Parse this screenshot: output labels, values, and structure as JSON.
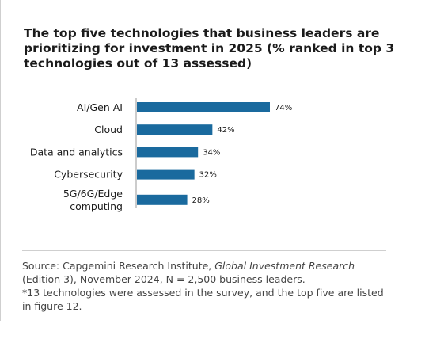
{
  "title": "The top five technologies that business leaders are prioritizing for investment in 2025 (% ranked in top 3 technologies out of 13 assessed)",
  "chart_data": {
    "type": "bar",
    "orientation": "horizontal",
    "categories": [
      [
        "AI/Gen AI"
      ],
      [
        "Cloud"
      ],
      [
        "Data and analytics"
      ],
      [
        "Cybersecurity"
      ],
      [
        "5G/6G/Edge",
        "computing"
      ]
    ],
    "values": [
      74,
      42,
      34,
      32,
      28
    ],
    "value_labels": [
      "74%",
      "42%",
      "34%",
      "32%",
      "28%"
    ],
    "bar_color": "#1a6a9e",
    "xlim": [
      0,
      100
    ],
    "grid": false,
    "legend": "none"
  },
  "footer": {
    "source_prefix": "Source: Capgemini Research Institute, ",
    "source_title": "Global Investment Research",
    "source_suffix": " (Edition 3), November 2024, N = 2,500 business leaders.",
    "note": "*13 technologies were assessed in the survey, and the top five are listed in figure 12."
  }
}
